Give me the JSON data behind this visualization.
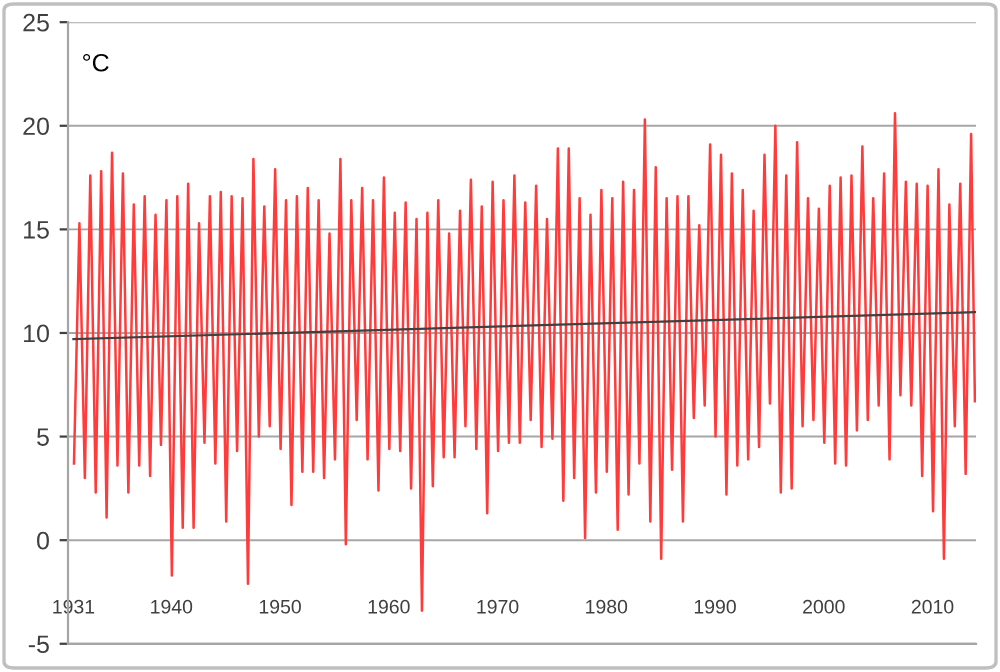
{
  "chart_data": {
    "type": "line",
    "annotations": [
      "°C"
    ],
    "xlim": [
      1930.5,
      2014.0
    ],
    "xticks": [
      1931,
      1940,
      1950,
      1960,
      1970,
      1980,
      1990,
      2000,
      2010
    ],
    "ylim": [
      -5,
      25
    ],
    "yticks": [
      -5,
      0,
      5,
      10,
      15,
      20,
      25
    ],
    "grid": "y",
    "legend": false,
    "marker": "none",
    "line_style": "solid",
    "series": [
      {
        "color": "#ff3b3b",
        "x": [
          1931.05,
          1931.55,
          1932.05,
          1932.55,
          1933.05,
          1933.55,
          1934.05,
          1934.55,
          1935.05,
          1935.55,
          1936.05,
          1936.55,
          1937.05,
          1937.55,
          1938.05,
          1938.55,
          1939.05,
          1939.55,
          1940.05,
          1940.55,
          1941.05,
          1941.55,
          1942.05,
          1942.55,
          1943.05,
          1943.55,
          1944.05,
          1944.55,
          1945.05,
          1945.55,
          1946.05,
          1946.55,
          1947.05,
          1947.55,
          1948.05,
          1948.55,
          1949.05,
          1949.55,
          1950.05,
          1950.55,
          1951.05,
          1951.55,
          1952.05,
          1952.55,
          1953.05,
          1953.55,
          1954.05,
          1954.55,
          1955.05,
          1955.55,
          1956.05,
          1956.55,
          1957.05,
          1957.55,
          1958.05,
          1958.55,
          1959.05,
          1959.55,
          1960.05,
          1960.55,
          1961.05,
          1961.55,
          1962.05,
          1962.55,
          1963.05,
          1963.55,
          1964.05,
          1964.55,
          1965.05,
          1965.55,
          1966.05,
          1966.55,
          1967.05,
          1967.55,
          1968.05,
          1968.55,
          1969.05,
          1969.55,
          1970.05,
          1970.55,
          1971.05,
          1971.55,
          1972.05,
          1972.55,
          1973.05,
          1973.55,
          1974.05,
          1974.55,
          1975.05,
          1975.55,
          1976.05,
          1976.55,
          1977.05,
          1977.55,
          1978.05,
          1978.55,
          1979.05,
          1979.55,
          1980.05,
          1980.55,
          1981.05,
          1981.55,
          1982.05,
          1982.55,
          1983.05,
          1983.55,
          1984.05,
          1984.55,
          1985.05,
          1985.55,
          1986.05,
          1986.55,
          1987.05,
          1987.55,
          1988.05,
          1988.55,
          1989.05,
          1989.55,
          1990.05,
          1990.55,
          1991.05,
          1991.55,
          1992.05,
          1992.55,
          1993.05,
          1993.55,
          1994.05,
          1994.55,
          1995.05,
          1995.55,
          1996.05,
          1996.55,
          1997.05,
          1997.55,
          1998.05,
          1998.55,
          1999.05,
          1999.55,
          2000.05,
          2000.55,
          2001.05,
          2001.55,
          2002.05,
          2002.55,
          2003.05,
          2003.55,
          2004.05,
          2004.55,
          2005.05,
          2005.55,
          2006.05,
          2006.55,
          2007.05,
          2007.55,
          2008.05,
          2008.55,
          2009.05,
          2009.55,
          2010.05,
          2010.55,
          2011.05,
          2011.55,
          2012.05,
          2012.55,
          2013.05,
          2013.55,
          2013.9
        ],
        "values": [
          3.7,
          15.3,
          3.0,
          17.6,
          2.3,
          17.8,
          1.1,
          18.7,
          3.6,
          17.7,
          2.3,
          16.2,
          3.6,
          16.6,
          3.1,
          15.7,
          4.6,
          16.4,
          -1.7,
          16.6,
          0.6,
          17.2,
          0.6,
          15.3,
          4.7,
          16.6,
          3.7,
          16.8,
          0.9,
          16.6,
          4.3,
          16.5,
          -2.1,
          18.4,
          5.0,
          16.1,
          5.5,
          17.9,
          4.4,
          16.4,
          1.7,
          16.6,
          3.3,
          17.0,
          3.3,
          16.4,
          3.0,
          14.8,
          3.9,
          18.4,
          -0.2,
          16.4,
          5.8,
          17.0,
          3.9,
          16.4,
          2.4,
          17.5,
          4.4,
          15.8,
          4.3,
          16.3,
          2.5,
          15.5,
          -3.4,
          15.8,
          2.6,
          16.4,
          4.0,
          14.8,
          4.0,
          15.9,
          5.5,
          17.4,
          4.4,
          16.1,
          1.3,
          17.3,
          4.3,
          16.4,
          4.7,
          17.6,
          4.7,
          16.3,
          5.8,
          17.1,
          4.5,
          15.5,
          4.9,
          18.9,
          1.9,
          18.9,
          3.0,
          16.5,
          0.1,
          15.7,
          2.3,
          16.9,
          3.3,
          16.5,
          0.5,
          17.3,
          2.2,
          16.9,
          3.7,
          20.3,
          0.9,
          18.0,
          -0.9,
          16.5,
          3.4,
          16.6,
          0.9,
          16.6,
          5.9,
          15.2,
          6.5,
          19.1,
          5.0,
          18.6,
          2.2,
          17.7,
          3.6,
          16.9,
          3.9,
          15.9,
          4.5,
          18.6,
          6.6,
          20.0,
          2.3,
          17.6,
          2.5,
          19.2,
          5.5,
          16.5,
          5.8,
          16.0,
          4.7,
          17.1,
          3.7,
          17.5,
          3.6,
          17.6,
          5.3,
          19.0,
          5.8,
          16.5,
          6.5,
          17.7,
          3.9,
          20.6,
          7.0,
          17.3,
          6.5,
          17.2,
          3.1,
          17.1,
          1.4,
          17.9,
          -0.9,
          16.2,
          5.5,
          17.2,
          3.2,
          19.6,
          6.7
        ]
      },
      {
        "color": "#404040",
        "x": [
          1931.0,
          2013.9
        ],
        "values": [
          9.7,
          11.0
        ]
      }
    ]
  }
}
